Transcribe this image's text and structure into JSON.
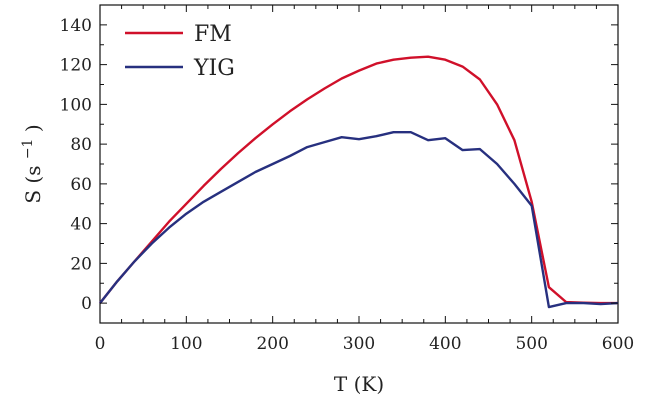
{
  "chart_data": {
    "type": "line",
    "xlabel": "T (K)",
    "ylabel": "S (s",
    "ylabel_sup": "−1",
    "ylabel_close": ")",
    "xlim": [
      0,
      600
    ],
    "ylim": [
      -10,
      150
    ],
    "xticks": [
      0,
      100,
      200,
      300,
      400,
      500,
      600
    ],
    "yticks": [
      0,
      20,
      40,
      60,
      80,
      100,
      120,
      140
    ],
    "grid": false,
    "legend_position": "top-left",
    "series": [
      {
        "name": "FM",
        "color": "#d0102a",
        "x": [
          0,
          20,
          40,
          60,
          80,
          100,
          120,
          140,
          160,
          180,
          200,
          220,
          240,
          260,
          280,
          300,
          320,
          340,
          360,
          380,
          400,
          420,
          440,
          460,
          480,
          500,
          520,
          540,
          560,
          580,
          600
        ],
        "y": [
          0,
          11,
          21,
          31,
          41,
          50,
          59,
          67.5,
          75.5,
          83,
          90,
          96.5,
          102.5,
          108,
          113,
          117,
          120.5,
          122.5,
          123.5,
          124,
          122.5,
          119,
          112.5,
          100,
          82,
          51,
          8,
          0.5,
          0.2,
          0,
          0
        ]
      },
      {
        "name": "YIG",
        "color": "#27307f",
        "x": [
          0,
          20,
          40,
          60,
          80,
          100,
          120,
          140,
          160,
          180,
          200,
          220,
          240,
          260,
          280,
          300,
          320,
          340,
          360,
          380,
          400,
          420,
          440,
          460,
          480,
          500,
          520,
          540,
          560,
          580,
          600
        ],
        "y": [
          0,
          11,
          21,
          30,
          38,
          45,
          51,
          56,
          61,
          66,
          70,
          74,
          78.5,
          81,
          83.5,
          82.5,
          84,
          86,
          86,
          82,
          83,
          77,
          77.5,
          70,
          60,
          49,
          -2,
          0,
          0,
          -0.5,
          0
        ]
      }
    ]
  }
}
